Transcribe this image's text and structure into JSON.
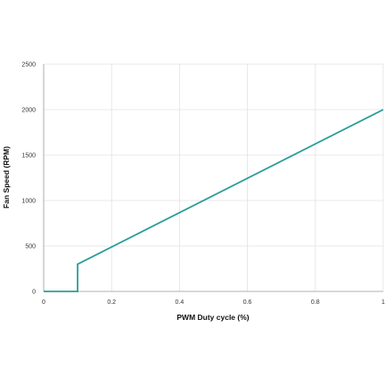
{
  "chart_data": {
    "type": "line",
    "title": "",
    "xlabel": "PWM Duty cycle (%)",
    "ylabel": "Fan Speed (RPM)",
    "xlim": [
      0,
      1
    ],
    "ylim": [
      0,
      2500
    ],
    "x_ticks": [
      0,
      0.2,
      0.4,
      0.6,
      0.8,
      1
    ],
    "x_tick_labels": [
      "0",
      "0.2",
      "0.4",
      "0.6",
      "0.8",
      "1"
    ],
    "y_ticks": [
      0,
      500,
      1000,
      1500,
      2000,
      2500
    ],
    "y_tick_labels": [
      "0",
      "500",
      "1000",
      "1500",
      "2000",
      "2500"
    ],
    "grid": true,
    "legend": "none",
    "series": [
      {
        "color": "#2a9d9a",
        "points": [
          [
            0,
            0
          ],
          [
            0.1,
            0
          ],
          [
            0.1,
            300
          ],
          [
            1,
            2000
          ]
        ]
      }
    ]
  }
}
